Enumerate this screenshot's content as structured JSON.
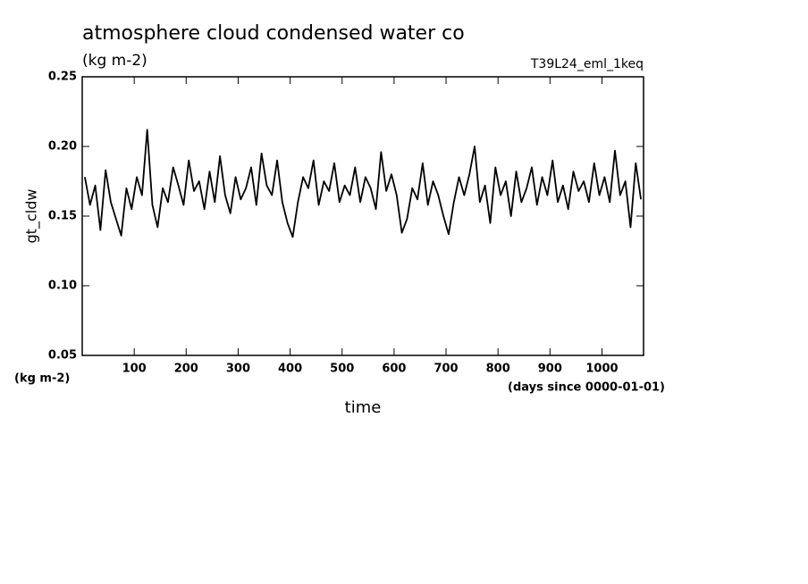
{
  "chart_data": {
    "type": "line",
    "title": "atmosphere cloud condensed water co",
    "subtitle": "(kg m-2)",
    "annotation": "T39L24_eml_1keq",
    "y_label": "gt_cldw",
    "y_unit": "(kg m-2)",
    "x_label": "time",
    "x_unit": "(days since 0000-01-01)",
    "xlim": [
      0,
      1080
    ],
    "ylim": [
      0.05,
      0.25
    ],
    "xticks": [
      100,
      200,
      300,
      400,
      500,
      600,
      700,
      800,
      900,
      1000
    ],
    "yticks": [
      0.05,
      {
        "value": 0.1,
        "label": "0.10"
      },
      0.15,
      {
        "value": 0.2,
        "label": "0.20"
      },
      0.25
    ],
    "x": [
      5,
      15,
      25,
      35,
      45,
      55,
      65,
      75,
      85,
      95,
      105,
      115,
      125,
      135,
      145,
      155,
      165,
      175,
      185,
      195,
      205,
      215,
      225,
      235,
      245,
      255,
      265,
      275,
      285,
      295,
      305,
      315,
      325,
      335,
      345,
      355,
      365,
      375,
      385,
      395,
      405,
      415,
      425,
      435,
      445,
      455,
      465,
      475,
      485,
      495,
      505,
      515,
      525,
      535,
      545,
      555,
      565,
      575,
      585,
      595,
      605,
      615,
      625,
      635,
      645,
      655,
      665,
      675,
      685,
      695,
      705,
      715,
      725,
      735,
      745,
      755,
      765,
      775,
      785,
      795,
      805,
      815,
      825,
      835,
      845,
      855,
      865,
      875,
      885,
      895,
      905,
      915,
      925,
      935,
      945,
      955,
      965,
      975,
      985,
      995,
      1005,
      1015,
      1025,
      1035,
      1045,
      1055,
      1065,
      1075
    ],
    "series": [
      {
        "color": "#000000",
        "values": [
          0.178,
          0.158,
          0.172,
          0.14,
          0.183,
          0.16,
          0.148,
          0.136,
          0.17,
          0.155,
          0.178,
          0.165,
          0.212,
          0.158,
          0.142,
          0.17,
          0.16,
          0.185,
          0.172,
          0.158,
          0.19,
          0.168,
          0.175,
          0.155,
          0.182,
          0.16,
          0.193,
          0.165,
          0.152,
          0.178,
          0.162,
          0.17,
          0.185,
          0.158,
          0.195,
          0.172,
          0.165,
          0.19,
          0.16,
          0.145,
          0.135,
          0.16,
          0.178,
          0.17,
          0.19,
          0.158,
          0.175,
          0.168,
          0.188,
          0.16,
          0.172,
          0.165,
          0.185,
          0.16,
          0.178,
          0.17,
          0.155,
          0.196,
          0.168,
          0.18,
          0.165,
          0.138,
          0.148,
          0.17,
          0.162,
          0.188,
          0.158,
          0.175,
          0.165,
          0.15,
          0.137,
          0.16,
          0.178,
          0.165,
          0.18,
          0.2,
          0.16,
          0.172,
          0.145,
          0.185,
          0.165,
          0.175,
          0.15,
          0.182,
          0.16,
          0.17,
          0.185,
          0.158,
          0.178,
          0.165,
          0.19,
          0.16,
          0.172,
          0.155,
          0.182,
          0.168,
          0.175,
          0.16,
          0.188,
          0.165,
          0.178,
          0.16,
          0.197,
          0.165,
          0.175,
          0.142,
          0.188,
          0.162
        ]
      }
    ]
  }
}
